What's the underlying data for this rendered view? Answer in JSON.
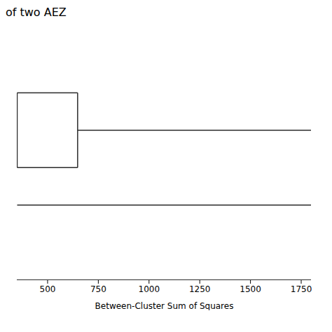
{
  "chart_data": {
    "type": "dendrogram",
    "title": "of two AEZ",
    "xlabel": "Between-Cluster Sum of Squares",
    "xlim": [
      350,
      1800
    ],
    "xticks": [
      500,
      750,
      1000,
      1250,
      1500,
      1750
    ],
    "ylim": [
      0,
      10
    ],
    "tick_labels": "x",
    "color": "#2b2b2b",
    "segments": [
      {
        "x": [
          350,
          648
        ],
        "y": [
          7.5,
          7.5
        ]
      },
      {
        "x": [
          350,
          648
        ],
        "y": [
          4.5,
          4.5
        ]
      },
      {
        "x": [
          350,
          350
        ],
        "y": [
          4.5,
          7.5
        ]
      },
      {
        "x": [
          648,
          648
        ],
        "y": [
          4.5,
          7.5
        ]
      },
      {
        "x": [
          648,
          1800
        ],
        "y": [
          6.0,
          6.0
        ]
      },
      {
        "x": [
          350,
          1800
        ],
        "y": [
          3.0,
          3.0
        ]
      }
    ]
  }
}
